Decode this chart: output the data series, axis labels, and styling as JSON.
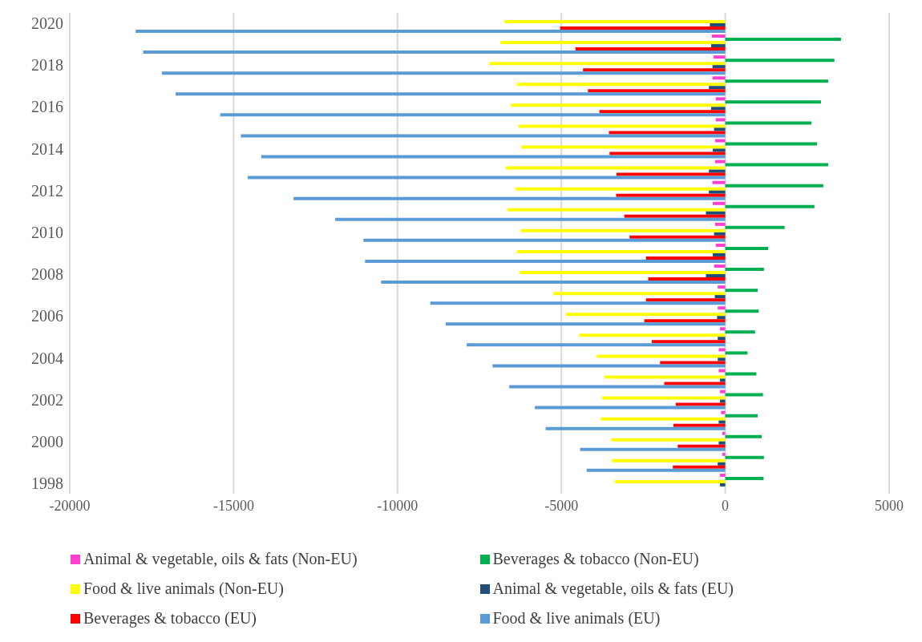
{
  "chart_data": {
    "type": "bar",
    "orientation": "horizontal",
    "categories": [
      "2020",
      null,
      "2018",
      null,
      "2016",
      null,
      "2014",
      null,
      "2012",
      null,
      "2010",
      null,
      "2008",
      null,
      "2006",
      null,
      "2004",
      null,
      "2002",
      null,
      "2000",
      null,
      "1998"
    ],
    "series": [
      {
        "name": "Animal & vegetable, oils & fats  (Non-EU)",
        "color": "#ff3fcf",
        "values": [
          null,
          -410,
          -360,
          -390,
          -290,
          -290,
          -310,
          -310,
          -390,
          -380,
          -310,
          -290,
          -340,
          -230,
          -230,
          -160,
          -200,
          -200,
          -160,
          -130,
          -90,
          -90,
          -160
        ]
      },
      {
        "name": "Beverages & tobacco  (Non-EU)",
        "color": "#00b050",
        "values": [
          null,
          3530,
          3330,
          3140,
          2920,
          2630,
          2800,
          3140,
          2990,
          2720,
          1810,
          1310,
          1180,
          990,
          1020,
          910,
          680,
          950,
          1150,
          990,
          1110,
          1180,
          1170
        ]
      },
      {
        "name": "Food & live animals  (Non-EU)",
        "color": "#ffff00",
        "values": [
          -6740,
          -6850,
          -7200,
          -6360,
          -6540,
          -6310,
          -6220,
          -6700,
          -6400,
          -6650,
          -6240,
          -6360,
          -6270,
          -5250,
          -4860,
          -4460,
          -3920,
          -3690,
          -3760,
          -3800,
          -3480,
          -3460,
          -3370
        ]
      },
      {
        "name": "Animal & vegetable, oils & fats  (EU)",
        "color": "#1f4e79",
        "values": [
          -470,
          -430,
          -390,
          -500,
          -430,
          -340,
          -380,
          -500,
          -500,
          -590,
          -340,
          -380,
          -590,
          -320,
          -250,
          -230,
          -230,
          -160,
          -160,
          -200,
          -200,
          -230,
          -160
        ]
      },
      {
        "name": "Beverages & tobacco (EU)",
        "color": "#ff0000",
        "values": [
          -5040,
          -4570,
          -4340,
          -4190,
          -3840,
          -3550,
          -3530,
          -3320,
          -3330,
          -3080,
          -2920,
          -2420,
          -2350,
          -2420,
          -2470,
          -2240,
          -1990,
          -1860,
          -1510,
          -1580,
          -1450,
          -1600,
          null
        ]
      },
      {
        "name": "Food & live animals (EU)",
        "color": "#5b9bd5",
        "values": [
          -17990,
          -17760,
          -17190,
          -16770,
          -15410,
          -14780,
          -14160,
          -14570,
          -13170,
          -11900,
          -11040,
          -10990,
          -10500,
          -9000,
          -8530,
          -7890,
          -7100,
          -6590,
          -5810,
          -5480,
          -4430,
          -4230,
          null
        ]
      }
    ],
    "xlim": [
      -20000,
      5000
    ],
    "xticks": [
      -20000,
      -15000,
      -10000,
      -5000,
      0,
      5000
    ],
    "grid": "x",
    "legend": "bottom"
  }
}
